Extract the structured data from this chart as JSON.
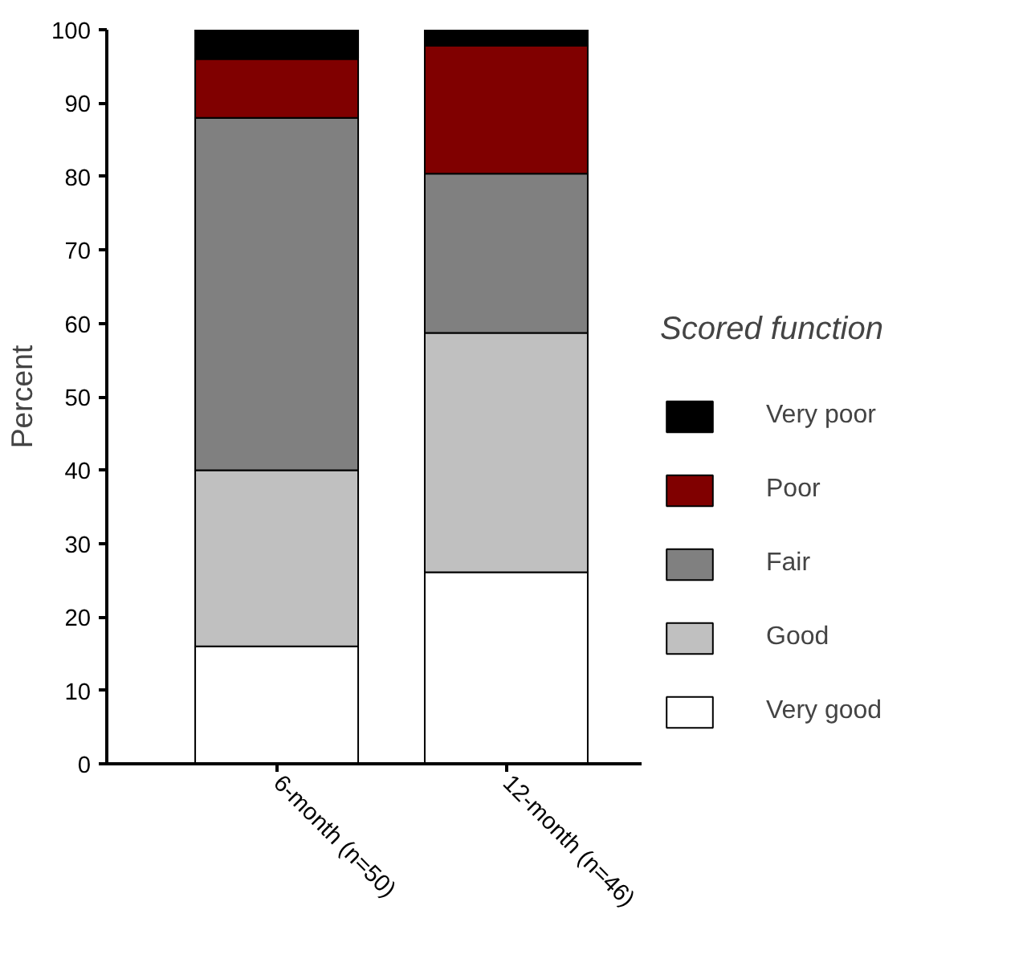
{
  "chart_data": {
    "type": "bar",
    "stacked": true,
    "ylabel": "Percent",
    "legend_title": "Scored function",
    "legend": "right",
    "grid": false,
    "categories": [
      "6-month (n=50)",
      "12-month (n=46)"
    ],
    "ylim": [
      0,
      100
    ],
    "yticks": [
      0,
      10,
      20,
      30,
      40,
      50,
      60,
      70,
      80,
      90,
      100
    ],
    "series": [
      {
        "name": "Very good",
        "color": "#ffffff",
        "values": [
          16,
          26.1
        ]
      },
      {
        "name": "Good",
        "color": "#c0c0c0",
        "values": [
          24,
          32.6
        ]
      },
      {
        "name": "Fair",
        "color": "#808080",
        "values": [
          48,
          21.7
        ]
      },
      {
        "name": "Poor",
        "color": "#800000",
        "values": [
          8,
          17.4
        ]
      },
      {
        "name": "Very poor",
        "color": "#000000",
        "values": [
          4,
          2.2
        ]
      }
    ]
  }
}
